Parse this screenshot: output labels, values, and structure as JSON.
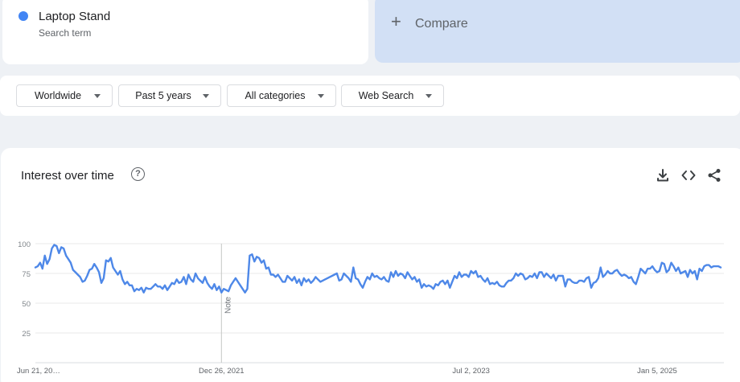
{
  "search_term": {
    "name": "Laptop Stand",
    "subtitle": "Search term",
    "color": "#4285f4"
  },
  "compare": {
    "label": "Compare"
  },
  "filters": [
    {
      "label": "Worldwide"
    },
    {
      "label": "Past 5 years"
    },
    {
      "label": "All categories"
    },
    {
      "label": "Web Search"
    }
  ],
  "chart_card": {
    "title": "Interest over time",
    "icons": [
      "help-icon",
      "download-icon",
      "embed-code-icon",
      "share-icon"
    ]
  },
  "chart_data": {
    "type": "line",
    "title": "Interest over time",
    "ylim": [
      0,
      100
    ],
    "y_ticks": [
      25,
      50,
      75,
      100
    ],
    "x_tick_labels": [
      "Jun 21, 20…",
      "Dec 26, 2021",
      "Jul 2, 2023",
      "Jan 5, 2025"
    ],
    "x_tick_weeks": [
      0,
      79,
      185,
      264
    ],
    "note_marker": {
      "label": "Note",
      "week": 79
    },
    "grid": true,
    "series": [
      {
        "color": "#4e88e8",
        "values": [
          80,
          81,
          84,
          79,
          90,
          83,
          87,
          96,
          99,
          98,
          92,
          97,
          96,
          90,
          87,
          84,
          78,
          76,
          74,
          72,
          68,
          69,
          73,
          78,
          79,
          83,
          80,
          76,
          67,
          71,
          86,
          85,
          88,
          80,
          77,
          74,
          77,
          70,
          66,
          68,
          65,
          65,
          60,
          62,
          61,
          63,
          59,
          63,
          62,
          62,
          64,
          66,
          64,
          64,
          62,
          65,
          61,
          64,
          67,
          66,
          70,
          67,
          68,
          72,
          66,
          74,
          70,
          68,
          75,
          71,
          69,
          67,
          72,
          67,
          64,
          62,
          66,
          61,
          64,
          59,
          62,
          61,
          60,
          65,
          68,
          71,
          68,
          65,
          62,
          59,
          62,
          90,
          91,
          85,
          89,
          88,
          84,
          86,
          79,
          80,
          74,
          74,
          72,
          74,
          71,
          68,
          68,
          73,
          71,
          69,
          72,
          67,
          70,
          65,
          71,
          68,
          70,
          67,
          69,
          72,
          70,
          68,
          69,
          70,
          71,
          72,
          73,
          74,
          75,
          69,
          70,
          75,
          73,
          71,
          68,
          80,
          71,
          70,
          66,
          63,
          68,
          72,
          70,
          75,
          72,
          73,
          71,
          70,
          72,
          69,
          68,
          76,
          72,
          77,
          73,
          75,
          74,
          71,
          76,
          73,
          70,
          72,
          68,
          70,
          63,
          66,
          64,
          65,
          64,
          62,
          66,
          65,
          68,
          69,
          66,
          69,
          63,
          68,
          73,
          71,
          76,
          72,
          74,
          74,
          72,
          77,
          75,
          77,
          72,
          73,
          70,
          68,
          71,
          66,
          67,
          66,
          68,
          65,
          64,
          64,
          67,
          69,
          69,
          71,
          75,
          73,
          75,
          74,
          70,
          71,
          73,
          72,
          75,
          71,
          76,
          76,
          72,
          75,
          73,
          71,
          74,
          69,
          73,
          73,
          73,
          64,
          70,
          70,
          68,
          67,
          67,
          69,
          69,
          68,
          71,
          72,
          63,
          67,
          68,
          71,
          80,
          72,
          74,
          77,
          75,
          75,
          77,
          78,
          75,
          73,
          74,
          73,
          71,
          72,
          68,
          66,
          72,
          79,
          77,
          75,
          79,
          79,
          81,
          78,
          76,
          77,
          84,
          83,
          76,
          78,
          84,
          81,
          77,
          80,
          75,
          76,
          77,
          72,
          78,
          75,
          77,
          70,
          79,
          77,
          81,
          82,
          82,
          80,
          81,
          81,
          81,
          80
        ]
      }
    ]
  }
}
